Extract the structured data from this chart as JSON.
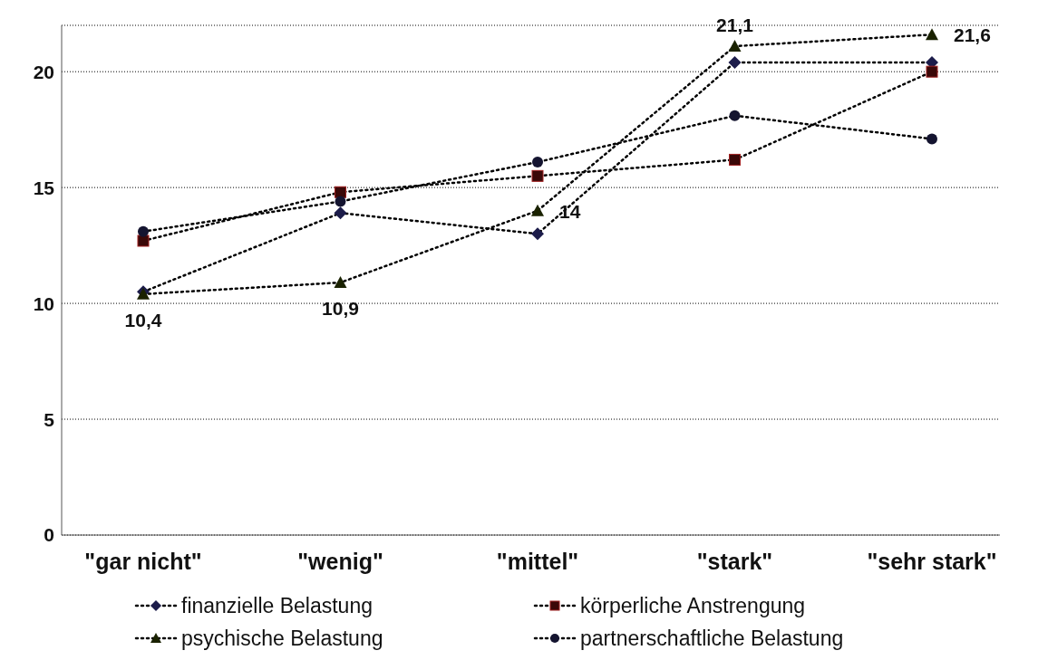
{
  "chart_data": {
    "type": "line",
    "categories": [
      "\"gar nicht\"",
      "\"wenig\"",
      "\"mittel\"",
      "\"stark\"",
      "\"sehr stark\""
    ],
    "ylim": [
      0,
      22
    ],
    "yticks": [
      0,
      5,
      10,
      15,
      20
    ],
    "grid": "y",
    "legend": "bottom",
    "line_style": "dotted",
    "series": [
      {
        "name": "finanzielle Belastung",
        "color": "#1c1c4a",
        "marker": "diamond",
        "values": [
          10.5,
          13.9,
          13.0,
          20.4,
          20.4
        ]
      },
      {
        "name": "körperliche Anstrengung",
        "color": "#3a0808",
        "marker": "square",
        "values": [
          12.7,
          14.8,
          15.5,
          16.2,
          20.0
        ]
      },
      {
        "name": "psychische Belastung",
        "color": "#1a2200",
        "marker": "triangle",
        "values": [
          10.4,
          10.9,
          14,
          21.1,
          21.6
        ],
        "value_labels": [
          "10,4",
          "10,9",
          "14",
          "21,1",
          "21,6"
        ]
      },
      {
        "name": "partnerschaftliche Belastung",
        "color": "#141430",
        "marker": "circle",
        "values": [
          13.1,
          14.4,
          16.1,
          18.1,
          17.1
        ]
      }
    ]
  }
}
